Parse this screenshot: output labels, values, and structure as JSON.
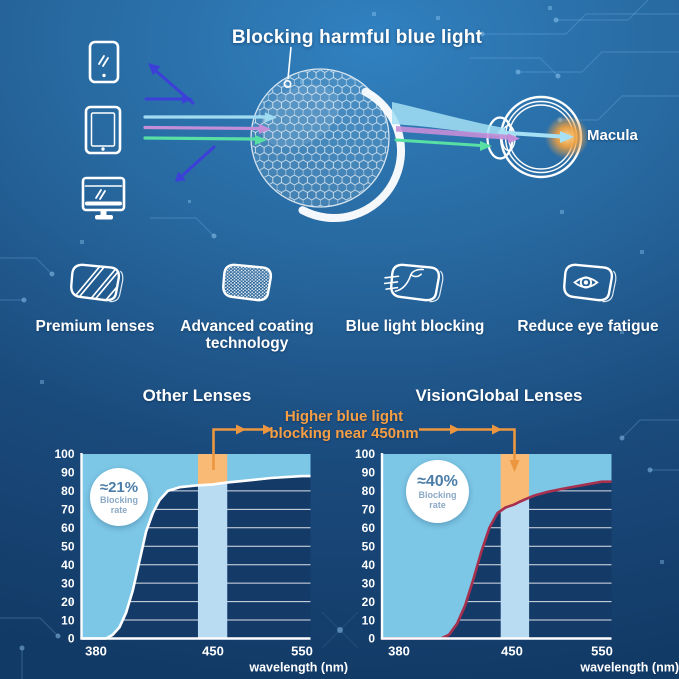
{
  "hero": {
    "title": "Blocking harmful blue light",
    "macula_label": "Macula",
    "devices": [
      "smartphone",
      "tablet",
      "monitor"
    ],
    "ray_colors": {
      "blue_reflected": "#3c40d9",
      "cyan": "#9fdcf2",
      "purple": "#c48fd8",
      "green": "#57dfa4"
    }
  },
  "features": [
    {
      "label": "Premium lenses",
      "icon": "striped-lens-icon"
    },
    {
      "label": "Advanced coating technology",
      "icon": "dotted-lens-icon"
    },
    {
      "label": "Blue light blocking",
      "icon": "deflecting-lens-icon"
    },
    {
      "label": "Reduce eye fatigue",
      "icon": "eye-lens-icon"
    }
  ],
  "comparison": {
    "annotation_line1": "Higher blue light",
    "annotation_line2": "blocking near 450nm",
    "accent_orange": "#ee9a3f"
  },
  "chart_data": [
    {
      "type": "area",
      "title": "Other Lenses",
      "badge": {
        "value": "≈21%",
        "line1": "Blocking",
        "line2": "rate"
      },
      "x": [
        380,
        386,
        390,
        394,
        398,
        402,
        406,
        410,
        414,
        418,
        423,
        430,
        440,
        450,
        465,
        485,
        515,
        550
      ],
      "y": [
        0,
        0,
        2,
        6,
        14,
        26,
        42,
        58,
        68,
        75,
        80,
        82,
        83,
        83.5,
        84.5,
        85.5,
        87,
        88
      ],
      "x_ticks": [
        380,
        450,
        550
      ],
      "y_ticks": [
        0,
        10,
        20,
        30,
        40,
        50,
        60,
        70,
        80,
        90,
        100
      ],
      "ylim": [
        0,
        100
      ],
      "xlabel": "wavelength (nm)",
      "highlight_band_nm": [
        441,
        466
      ],
      "colors": {
        "plot_bg": "#143a68",
        "area": "#7cc6e6",
        "band": "#b9dcf3",
        "orange": "#f8ba74",
        "curve": "#ffffff"
      }
    },
    {
      "type": "area",
      "title": "VisionGlobal Lenses",
      "badge": {
        "value": "≈40%",
        "line1": "Blocking",
        "line2": "rate"
      },
      "x": [
        380,
        400,
        406,
        411,
        416,
        421,
        426,
        431,
        436,
        441,
        446,
        452,
        458,
        465,
        475,
        490,
        510,
        550
      ],
      "y": [
        0,
        0,
        0,
        2,
        8,
        18,
        32,
        47,
        60,
        68,
        71,
        72.5,
        74,
        75.5,
        77.5,
        79.5,
        81.5,
        85
      ],
      "x_ticks": [
        380,
        450,
        550
      ],
      "y_ticks": [
        0,
        10,
        20,
        30,
        40,
        50,
        60,
        70,
        80,
        90,
        100
      ],
      "ylim": [
        0,
        100
      ],
      "xlabel": "wavelength (nm)",
      "highlight_band_nm": [
        443,
        469
      ],
      "colors": {
        "plot_bg": "#143a68",
        "area": "#7cc6e6",
        "band": "#b9dcf3",
        "orange": "#f8ba74",
        "curve": "#a8304f"
      }
    }
  ]
}
